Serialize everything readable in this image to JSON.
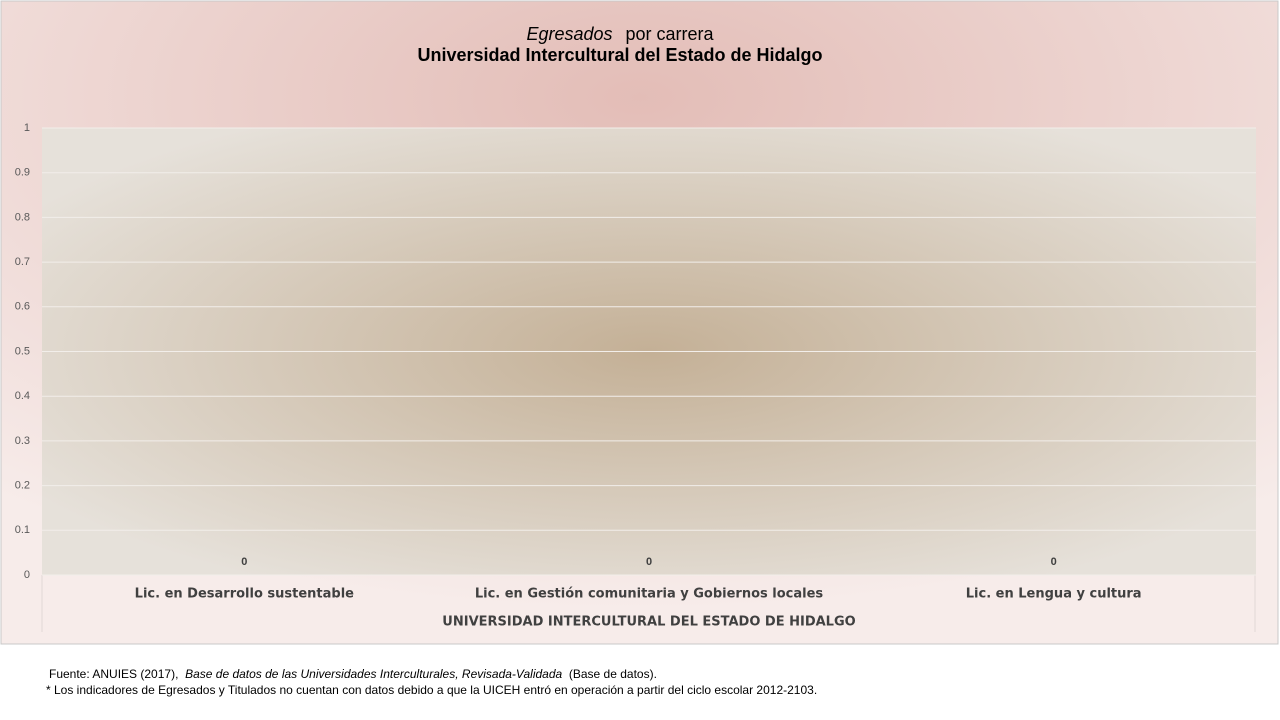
{
  "chart_data": {
    "type": "bar",
    "title_emphasis": "Egresados",
    "title": "por carrera",
    "subtitle": "Universidad Intercultural del Estado de Hidalgo",
    "categories": [
      "Lic. en Desarrollo sustentable",
      "Lic. en Gestión comunitaria y Gobiernos locales",
      "Lic. en Lengua y cultura"
    ],
    "x_group_label": "UNIVERSIDAD INTERCULTURAL DEL ESTADO DE HIDALGO",
    "values": [
      0,
      0,
      0
    ],
    "color": "#4f81bd",
    "ylim": [
      0,
      1
    ],
    "yticks": [
      0,
      0.1,
      0.2,
      0.3,
      0.4,
      0.5,
      0.6,
      0.7,
      0.8,
      0.9,
      1
    ],
    "grid": true
  },
  "notes": {
    "source_prefix": "Fuente: ANUIES (2017),",
    "source_title": "Base de datos de las Universidades Interculturales, Revisada-Validada",
    "source_suffix": "(Base de datos).",
    "footnote": "* Los indicadores de Egresados y Titulados no cuentan con datos debido a que la UICEH entró en operación a partir del ciclo escolar 2012-2103."
  }
}
